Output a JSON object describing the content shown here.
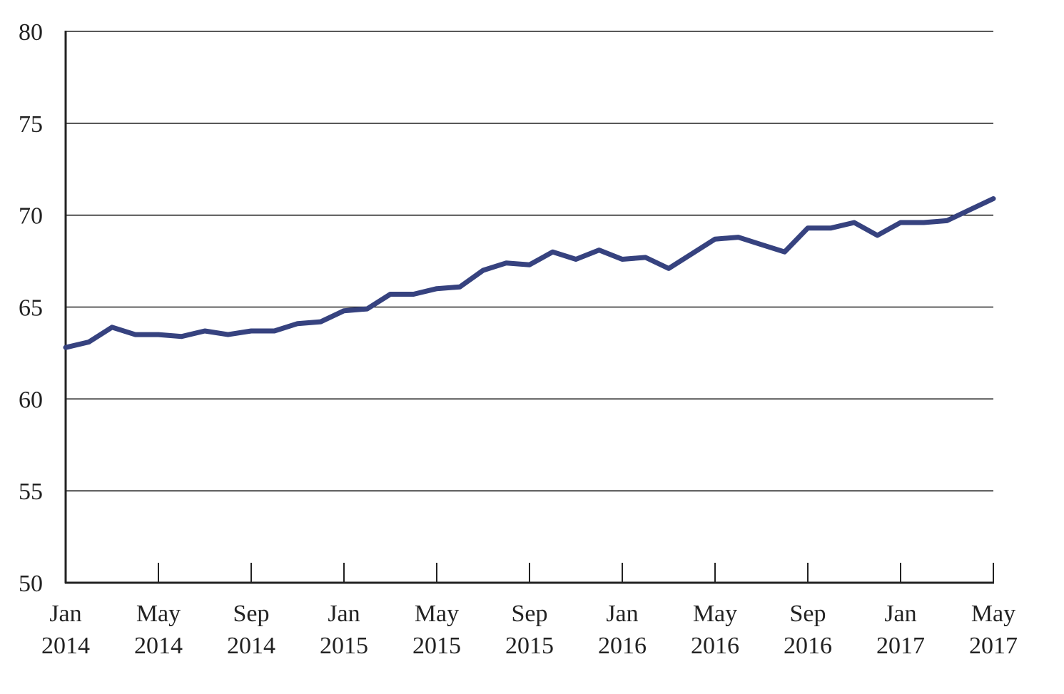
{
  "chart_data": {
    "type": "line",
    "title": "",
    "xlabel": "",
    "ylabel": "",
    "ylim": [
      50,
      80
    ],
    "yticks": [
      50,
      55,
      60,
      65,
      70,
      75,
      80
    ],
    "grid": true,
    "legend": "none",
    "color": "#36427f",
    "xticks": [
      {
        "month": "Jan",
        "year": "2014",
        "date": "2014-01"
      },
      {
        "month": "May",
        "year": "2014",
        "date": "2014-05"
      },
      {
        "month": "Sep",
        "year": "2014",
        "date": "2014-09"
      },
      {
        "month": "Jan",
        "year": "2015",
        "date": "2015-01"
      },
      {
        "month": "May",
        "year": "2015",
        "date": "2015-05"
      },
      {
        "month": "Sep",
        "year": "2015",
        "date": "2015-09"
      },
      {
        "month": "Jan",
        "year": "2016",
        "date": "2016-01"
      },
      {
        "month": "May",
        "year": "2016",
        "date": "2016-05"
      },
      {
        "month": "Sep",
        "year": "2016",
        "date": "2016-09"
      },
      {
        "month": "Jan",
        "year": "2017",
        "date": "2017-01"
      },
      {
        "month": "May",
        "year": "2017",
        "date": "2017-05"
      }
    ],
    "x": [
      "2014-01",
      "2014-02",
      "2014-03",
      "2014-04",
      "2014-05",
      "2014-06",
      "2014-07",
      "2014-08",
      "2014-09",
      "2014-10",
      "2014-11",
      "2014-12",
      "2015-01",
      "2015-02",
      "2015-03",
      "2015-04",
      "2015-05",
      "2015-06",
      "2015-07",
      "2015-08",
      "2015-09",
      "2015-10",
      "2015-11",
      "2015-12",
      "2016-01",
      "2016-02",
      "2016-03",
      "2016-04",
      "2016-05",
      "2016-06",
      "2016-07",
      "2016-08",
      "2016-09",
      "2016-10",
      "2016-11",
      "2016-12",
      "2017-01",
      "2017-02",
      "2017-03",
      "2017-04",
      "2017-05"
    ],
    "series": [
      {
        "values": [
          62.8,
          63.1,
          63.9,
          63.5,
          63.5,
          63.4,
          63.7,
          63.5,
          63.7,
          63.7,
          64.1,
          64.2,
          64.8,
          64.9,
          65.7,
          65.7,
          66.0,
          66.1,
          67.0,
          67.4,
          67.3,
          68.0,
          67.6,
          68.1,
          67.6,
          67.7,
          67.1,
          67.9,
          68.7,
          68.8,
          68.4,
          68.0,
          69.3,
          69.3,
          69.6,
          68.9,
          69.6,
          69.6,
          69.7,
          70.3,
          70.9
        ]
      }
    ]
  }
}
